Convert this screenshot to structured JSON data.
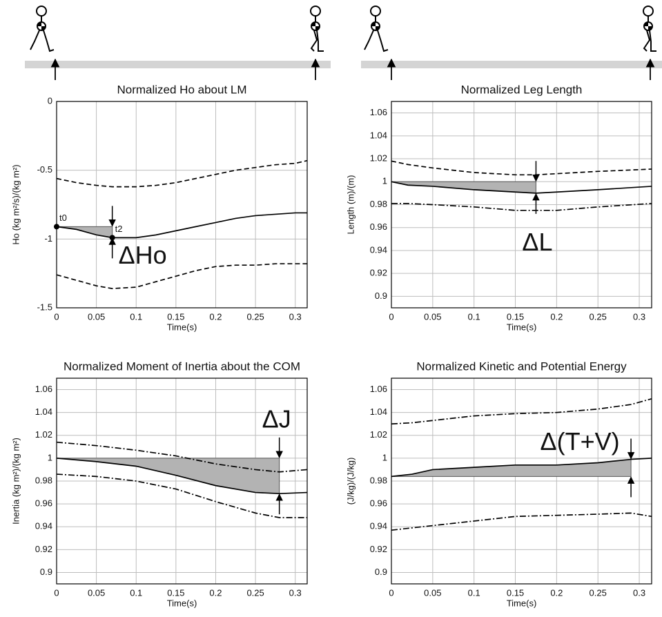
{
  "chart_data": [
    {
      "type": "line",
      "title": "Normalized Ho about LM",
      "xlabel": "Time(s)",
      "ylabel": "Ho (kg m²/s)/(kg m²)",
      "x": [
        0,
        0.025,
        0.05,
        0.07,
        0.1,
        0.125,
        0.15,
        0.175,
        0.2,
        0.225,
        0.25,
        0.275,
        0.3,
        0.315
      ],
      "series": [
        {
          "color": "#000000",
          "style": "solid",
          "values": [
            -0.91,
            -0.93,
            -0.97,
            -0.99,
            -0.99,
            -0.97,
            -0.94,
            -0.91,
            -0.88,
            -0.85,
            -0.83,
            -0.82,
            -0.81,
            -0.81
          ]
        },
        {
          "color": "#000000",
          "style": "dashed",
          "values": [
            -0.56,
            -0.59,
            -0.61,
            -0.62,
            -0.62,
            -0.61,
            -0.59,
            -0.56,
            -0.53,
            -0.5,
            -0.48,
            -0.46,
            -0.45,
            -0.43
          ]
        },
        {
          "color": "#000000",
          "style": "dashed",
          "values": [
            -1.26,
            -1.3,
            -1.34,
            -1.36,
            -1.35,
            -1.31,
            -1.27,
            -1.23,
            -1.2,
            -1.19,
            -1.19,
            -1.18,
            -1.18,
            -1.18
          ]
        }
      ],
      "highlight": {
        "from": 0,
        "to": 0.07,
        "baseline": -0.91,
        "label": "ΔHo"
      },
      "markers": [
        {
          "label": "t0",
          "x": 0,
          "y": -0.91
        },
        {
          "label": "t2",
          "x": 0.07,
          "y": -0.99
        }
      ],
      "xlim": [
        0,
        0.315
      ],
      "xticks": [
        0,
        0.05,
        0.1,
        0.15,
        0.2,
        0.25,
        0.3
      ],
      "ylim": [
        -1.5,
        0
      ],
      "yticks": [
        -1.5,
        -1,
        -0.5,
        0
      ],
      "grid": true
    },
    {
      "type": "line",
      "title": "Normalized Leg Length",
      "xlabel": "Time(s)",
      "ylabel": "Length (m)/(m)",
      "x": [
        0,
        0.02,
        0.05,
        0.1,
        0.15,
        0.175,
        0.2,
        0.25,
        0.315
      ],
      "series": [
        {
          "color": "#000000",
          "style": "solid",
          "values": [
            1,
            0.997,
            0.996,
            0.993,
            0.991,
            0.99,
            0.991,
            0.993,
            0.996
          ]
        },
        {
          "color": "#000000",
          "style": "dashed",
          "values": [
            1.018,
            1.015,
            1.012,
            1.008,
            1.006,
            1.006,
            1.007,
            1.009,
            1.011
          ]
        },
        {
          "color": "#000000",
          "style": "dashdot",
          "values": [
            0.981,
            0.981,
            0.98,
            0.978,
            0.975,
            0.975,
            0.975,
            0.978,
            0.981
          ]
        }
      ],
      "highlight": {
        "from": 0,
        "to": 0.175,
        "baseline": 1,
        "label": "ΔL"
      },
      "xlim": [
        0,
        0.315
      ],
      "xticks": [
        0,
        0.05,
        0.1,
        0.15,
        0.2,
        0.25,
        0.3
      ],
      "ylim": [
        0.89,
        1.07
      ],
      "yticks": [
        0.9,
        0.92,
        0.94,
        0.96,
        0.98,
        1,
        1.02,
        1.04,
        1.06
      ],
      "grid": true
    },
    {
      "type": "line",
      "title": "Normalized Moment of Inertia about the COM",
      "xlabel": "Time(s)",
      "ylabel": "Inertia (kg m²)/(kg m²)",
      "x": [
        0,
        0.05,
        0.1,
        0.15,
        0.2,
        0.25,
        0.28,
        0.315
      ],
      "series": [
        {
          "color": "#000000",
          "style": "solid",
          "values": [
            1,
            0.997,
            0.993,
            0.985,
            0.976,
            0.97,
            0.969,
            0.97
          ]
        },
        {
          "color": "#000000",
          "style": "dashdot",
          "values": [
            1.014,
            1.011,
            1.007,
            1.002,
            0.995,
            0.99,
            0.988,
            0.99
          ]
        },
        {
          "color": "#000000",
          "style": "dashdot",
          "values": [
            0.986,
            0.984,
            0.98,
            0.973,
            0.962,
            0.952,
            0.948,
            0.948
          ]
        }
      ],
      "highlight": {
        "from": 0,
        "to": 0.28,
        "baseline": 1,
        "label": "ΔJ"
      },
      "xlim": [
        0,
        0.315
      ],
      "xticks": [
        0,
        0.05,
        0.1,
        0.15,
        0.2,
        0.25,
        0.3
      ],
      "ylim": [
        0.89,
        1.07
      ],
      "yticks": [
        0.9,
        0.92,
        0.94,
        0.96,
        0.98,
        1,
        1.02,
        1.04,
        1.06
      ],
      "grid": true
    },
    {
      "type": "line",
      "title": "Normalized Kinetic and Potential Energy",
      "xlabel": "Time(s)",
      "ylabel": "(J/kg)/(J/kg)",
      "x": [
        0,
        0.025,
        0.05,
        0.1,
        0.15,
        0.2,
        0.25,
        0.29,
        0.315
      ],
      "series": [
        {
          "color": "#000000",
          "style": "solid",
          "values": [
            0.984,
            0.986,
            0.99,
            0.992,
            0.994,
            0.994,
            0.996,
            0.999,
            1
          ]
        },
        {
          "color": "#000000",
          "style": "dashdot",
          "values": [
            1.03,
            1.031,
            1.033,
            1.037,
            1.039,
            1.04,
            1.043,
            1.047,
            1.052
          ]
        },
        {
          "color": "#000000",
          "style": "dashdot",
          "values": [
            0.937,
            0.939,
            0.941,
            0.945,
            0.949,
            0.95,
            0.951,
            0.952,
            0.949
          ]
        }
      ],
      "highlight": {
        "from": 0,
        "to": 0.29,
        "baseline": 0.984,
        "label": "Δ(T+V)"
      },
      "xlim": [
        0,
        0.315
      ],
      "xticks": [
        0,
        0.05,
        0.1,
        0.15,
        0.2,
        0.25,
        0.3
      ],
      "ylim": [
        0.89,
        1.07
      ],
      "yticks": [
        0.9,
        0.92,
        0.94,
        0.96,
        0.98,
        1,
        1.02,
        1.04,
        1.06
      ],
      "grid": true
    }
  ]
}
